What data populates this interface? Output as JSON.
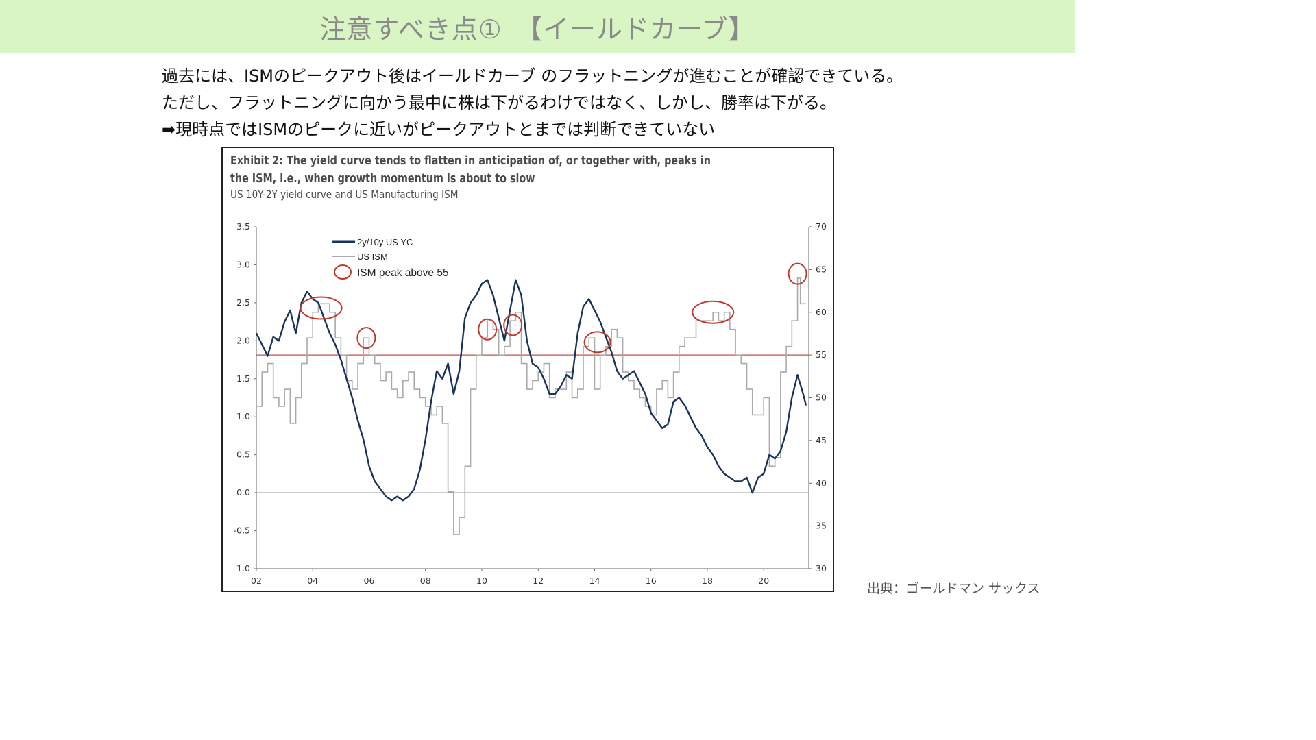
{
  "slide": {
    "title": "注意すべき点①　【イールドカーブ】",
    "lines": [
      "過去には、ISMのピークアウト後はイールドカーブ のフラットニングが進むことが確認できている。",
      "ただし、フラットニングに向かう最中に株は下がるわけではなく、しかし、勝率は下がる。",
      "➡現時点ではISMのピークに近いがピークアウトとまでは判断できていない"
    ],
    "source": "出典：ゴールドマン サックス"
  },
  "chart_data": {
    "type": "line",
    "title": "Exhibit 2: The yield curve tends to flatten in anticipation of, or together with, peaks in the ISM, i.e., when growth momentum is about to slow",
    "subtitle": "US 10Y-2Y yield curve and US Manufacturing ISM",
    "x_tick_labels": [
      "02",
      "04",
      "06",
      "08",
      "10",
      "12",
      "14",
      "16",
      "18",
      "20"
    ],
    "x_range": [
      2002,
      2021.6
    ],
    "y_left": {
      "range": [
        -1.0,
        3.5
      ],
      "ticks": [
        "3.5",
        "3.0",
        "2.5",
        "2.0",
        "1.5",
        "1.0",
        "0.5",
        "0.0",
        "-0.5",
        "-1.0"
      ]
    },
    "y_right": {
      "range": [
        30,
        70
      ],
      "ticks": [
        "70",
        "65",
        "60",
        "55",
        "50",
        "45",
        "40",
        "35",
        "30"
      ]
    },
    "reference_lines": [
      {
        "axis": "left",
        "value": 0.0,
        "color": "#999999"
      },
      {
        "axis": "right",
        "value": 55,
        "color": "#c0504d"
      }
    ],
    "legend": {
      "position": "top-left",
      "entries": [
        "2y/10y US YC",
        "US ISM",
        "ISM peak above 55"
      ]
    },
    "series": [
      {
        "name": "2y/10y US YC",
        "axis": "left",
        "color": "#17335e",
        "points": [
          [
            2002.0,
            2.1
          ],
          [
            2002.2,
            1.95
          ],
          [
            2002.4,
            1.8
          ],
          [
            2002.6,
            2.05
          ],
          [
            2002.8,
            2.0
          ],
          [
            2003.0,
            2.25
          ],
          [
            2003.2,
            2.4
          ],
          [
            2003.4,
            2.1
          ],
          [
            2003.6,
            2.5
          ],
          [
            2003.8,
            2.65
          ],
          [
            2004.0,
            2.55
          ],
          [
            2004.2,
            2.5
          ],
          [
            2004.4,
            2.3
          ],
          [
            2004.6,
            2.1
          ],
          [
            2004.8,
            1.95
          ],
          [
            2005.0,
            1.75
          ],
          [
            2005.2,
            1.5
          ],
          [
            2005.4,
            1.25
          ],
          [
            2005.6,
            0.95
          ],
          [
            2005.8,
            0.7
          ],
          [
            2006.0,
            0.35
          ],
          [
            2006.2,
            0.15
          ],
          [
            2006.4,
            0.05
          ],
          [
            2006.6,
            -0.05
          ],
          [
            2006.8,
            -0.1
          ],
          [
            2007.0,
            -0.05
          ],
          [
            2007.2,
            -0.1
          ],
          [
            2007.4,
            -0.05
          ],
          [
            2007.6,
            0.05
          ],
          [
            2007.8,
            0.3
          ],
          [
            2008.0,
            0.7
          ],
          [
            2008.2,
            1.2
          ],
          [
            2008.4,
            1.6
          ],
          [
            2008.6,
            1.5
          ],
          [
            2008.8,
            1.7
          ],
          [
            2009.0,
            1.3
          ],
          [
            2009.2,
            1.6
          ],
          [
            2009.4,
            2.3
          ],
          [
            2009.6,
            2.5
          ],
          [
            2009.8,
            2.6
          ],
          [
            2010.0,
            2.75
          ],
          [
            2010.2,
            2.8
          ],
          [
            2010.4,
            2.6
          ],
          [
            2010.6,
            2.3
          ],
          [
            2010.8,
            2.0
          ],
          [
            2011.0,
            2.4
          ],
          [
            2011.2,
            2.8
          ],
          [
            2011.4,
            2.6
          ],
          [
            2011.6,
            2.0
          ],
          [
            2011.8,
            1.7
          ],
          [
            2012.0,
            1.65
          ],
          [
            2012.2,
            1.5
          ],
          [
            2012.4,
            1.3
          ],
          [
            2012.6,
            1.3
          ],
          [
            2012.8,
            1.4
          ],
          [
            2013.0,
            1.55
          ],
          [
            2013.2,
            1.5
          ],
          [
            2013.4,
            2.1
          ],
          [
            2013.6,
            2.45
          ],
          [
            2013.8,
            2.55
          ],
          [
            2014.0,
            2.4
          ],
          [
            2014.2,
            2.25
          ],
          [
            2014.4,
            2.05
          ],
          [
            2014.6,
            1.85
          ],
          [
            2014.8,
            1.6
          ],
          [
            2015.0,
            1.5
          ],
          [
            2015.2,
            1.55
          ],
          [
            2015.4,
            1.6
          ],
          [
            2015.6,
            1.45
          ],
          [
            2015.8,
            1.3
          ],
          [
            2016.0,
            1.05
          ],
          [
            2016.2,
            0.95
          ],
          [
            2016.4,
            0.85
          ],
          [
            2016.6,
            0.9
          ],
          [
            2016.8,
            1.2
          ],
          [
            2017.0,
            1.25
          ],
          [
            2017.2,
            1.15
          ],
          [
            2017.4,
            1.0
          ],
          [
            2017.6,
            0.85
          ],
          [
            2017.8,
            0.75
          ],
          [
            2018.0,
            0.6
          ],
          [
            2018.2,
            0.5
          ],
          [
            2018.4,
            0.35
          ],
          [
            2018.6,
            0.25
          ],
          [
            2018.8,
            0.2
          ],
          [
            2019.0,
            0.15
          ],
          [
            2019.2,
            0.15
          ],
          [
            2019.4,
            0.2
          ],
          [
            2019.6,
            0.0
          ],
          [
            2019.8,
            0.2
          ],
          [
            2020.0,
            0.25
          ],
          [
            2020.2,
            0.5
          ],
          [
            2020.4,
            0.45
          ],
          [
            2020.6,
            0.55
          ],
          [
            2020.8,
            0.8
          ],
          [
            2021.0,
            1.25
          ],
          [
            2021.2,
            1.55
          ],
          [
            2021.4,
            1.3
          ],
          [
            2021.5,
            1.15
          ]
        ]
      },
      {
        "name": "US ISM",
        "axis": "right",
        "color": "#aaaaaa",
        "points": [
          [
            2002.0,
            49
          ],
          [
            2002.2,
            53
          ],
          [
            2002.4,
            54
          ],
          [
            2002.6,
            50
          ],
          [
            2002.8,
            49
          ],
          [
            2003.0,
            51
          ],
          [
            2003.2,
            47
          ],
          [
            2003.4,
            50
          ],
          [
            2003.6,
            54
          ],
          [
            2003.8,
            57
          ],
          [
            2004.0,
            60
          ],
          [
            2004.2,
            61
          ],
          [
            2004.4,
            61
          ],
          [
            2004.6,
            60
          ],
          [
            2004.8,
            57
          ],
          [
            2005.0,
            55
          ],
          [
            2005.2,
            52
          ],
          [
            2005.4,
            51
          ],
          [
            2005.6,
            54
          ],
          [
            2005.8,
            57
          ],
          [
            2006.0,
            55
          ],
          [
            2006.2,
            54
          ],
          [
            2006.4,
            52
          ],
          [
            2006.6,
            53
          ],
          [
            2006.8,
            51
          ],
          [
            2007.0,
            50
          ],
          [
            2007.2,
            52
          ],
          [
            2007.4,
            53
          ],
          [
            2007.6,
            51
          ],
          [
            2007.8,
            50
          ],
          [
            2008.0,
            49
          ],
          [
            2008.2,
            48
          ],
          [
            2008.4,
            49
          ],
          [
            2008.6,
            47
          ],
          [
            2008.8,
            39
          ],
          [
            2009.0,
            34
          ],
          [
            2009.2,
            36
          ],
          [
            2009.4,
            42
          ],
          [
            2009.6,
            51
          ],
          [
            2009.8,
            55
          ],
          [
            2010.0,
            57
          ],
          [
            2010.2,
            59
          ],
          [
            2010.4,
            58
          ],
          [
            2010.6,
            55
          ],
          [
            2010.8,
            56
          ],
          [
            2011.0,
            59
          ],
          [
            2011.2,
            60
          ],
          [
            2011.4,
            54
          ],
          [
            2011.6,
            51
          ],
          [
            2011.8,
            52
          ],
          [
            2012.0,
            53
          ],
          [
            2012.2,
            54
          ],
          [
            2012.4,
            50
          ],
          [
            2012.6,
            51
          ],
          [
            2012.8,
            51
          ],
          [
            2013.0,
            53
          ],
          [
            2013.2,
            50
          ],
          [
            2013.4,
            51
          ],
          [
            2013.6,
            56
          ],
          [
            2013.8,
            57
          ],
          [
            2014.0,
            51
          ],
          [
            2014.2,
            55
          ],
          [
            2014.4,
            56
          ],
          [
            2014.6,
            58
          ],
          [
            2014.8,
            57
          ],
          [
            2015.0,
            53
          ],
          [
            2015.2,
            52
          ],
          [
            2015.4,
            51
          ],
          [
            2015.6,
            50
          ],
          [
            2015.8,
            49
          ],
          [
            2016.0,
            48
          ],
          [
            2016.2,
            51
          ],
          [
            2016.4,
            52
          ],
          [
            2016.6,
            50
          ],
          [
            2016.8,
            53
          ],
          [
            2017.0,
            56
          ],
          [
            2017.2,
            57
          ],
          [
            2017.4,
            57
          ],
          [
            2017.6,
            59
          ],
          [
            2017.8,
            59
          ],
          [
            2018.0,
            59
          ],
          [
            2018.2,
            60
          ],
          [
            2018.4,
            59
          ],
          [
            2018.6,
            60
          ],
          [
            2018.8,
            58
          ],
          [
            2019.0,
            55
          ],
          [
            2019.2,
            54
          ],
          [
            2019.4,
            51
          ],
          [
            2019.6,
            48
          ],
          [
            2019.8,
            48
          ],
          [
            2020.0,
            50
          ],
          [
            2020.2,
            42
          ],
          [
            2020.4,
            43
          ],
          [
            2020.6,
            53
          ],
          [
            2020.8,
            56
          ],
          [
            2021.0,
            59
          ],
          [
            2021.2,
            64
          ],
          [
            2021.3,
            61
          ],
          [
            2021.5,
            61
          ]
        ]
      }
    ],
    "peak_markers": [
      {
        "x": 2004.3,
        "y": 60.5
      },
      {
        "x": 2005.9,
        "y": 57
      },
      {
        "x": 2010.2,
        "y": 58
      },
      {
        "x": 2011.1,
        "y": 58.5
      },
      {
        "x": 2014.1,
        "y": 56.5
      },
      {
        "x": 2018.2,
        "y": 60
      },
      {
        "x": 2021.2,
        "y": 64.5
      }
    ]
  }
}
